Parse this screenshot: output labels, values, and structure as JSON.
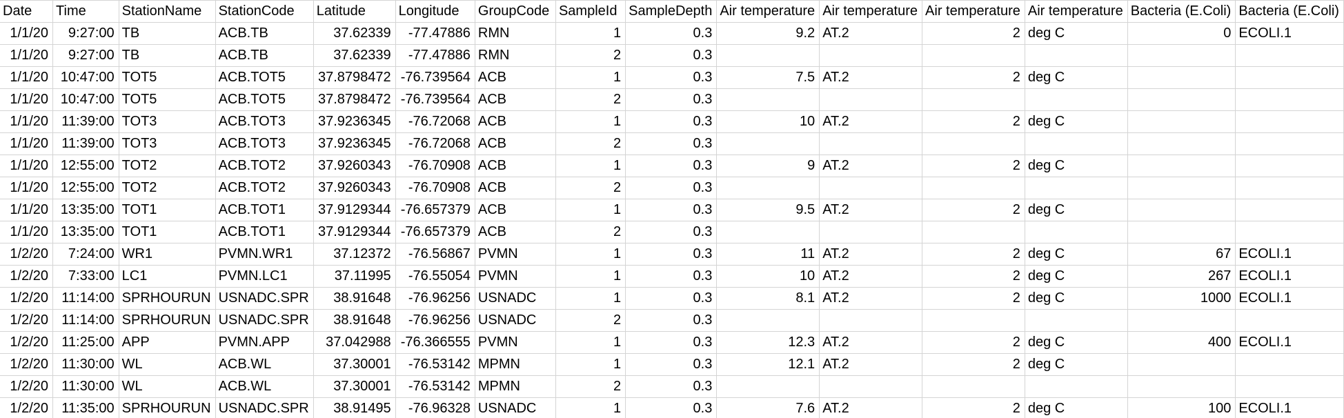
{
  "sheet": {
    "headers": [
      "Date",
      "Time",
      "StationName",
      "StationCode",
      "Latitude",
      "Longitude",
      "GroupCode",
      "SampleId",
      "SampleDepth",
      "Air temperature",
      "Air temperature",
      "Air temperature",
      "Air temperature",
      "Bacteria (E.Coli)",
      "Bacteria (E.Coli)"
    ],
    "rows": [
      [
        "1/1/20",
        "9:27:00",
        "TB",
        "ACB.TB",
        "37.62339",
        "-77.47886",
        "RMN",
        "1",
        "0.3",
        "9.2",
        "AT.2",
        "2",
        "deg C",
        "0",
        "ECOLI.1"
      ],
      [
        "1/1/20",
        "9:27:00",
        "TB",
        "ACB.TB",
        "37.62339",
        "-77.47886",
        "RMN",
        "2",
        "0.3",
        "",
        "",
        "",
        "",
        "",
        ""
      ],
      [
        "1/1/20",
        "10:47:00",
        "TOT5",
        "ACB.TOT5",
        "37.8798472",
        "-76.739564",
        "ACB",
        "1",
        "0.3",
        "7.5",
        "AT.2",
        "2",
        "deg C",
        "",
        ""
      ],
      [
        "1/1/20",
        "10:47:00",
        "TOT5",
        "ACB.TOT5",
        "37.8798472",
        "-76.739564",
        "ACB",
        "2",
        "0.3",
        "",
        "",
        "",
        "",
        "",
        ""
      ],
      [
        "1/1/20",
        "11:39:00",
        "TOT3",
        "ACB.TOT3",
        "37.9236345",
        "-76.72068",
        "ACB",
        "1",
        "0.3",
        "10",
        "AT.2",
        "2",
        "deg C",
        "",
        ""
      ],
      [
        "1/1/20",
        "11:39:00",
        "TOT3",
        "ACB.TOT3",
        "37.9236345",
        "-76.72068",
        "ACB",
        "2",
        "0.3",
        "",
        "",
        "",
        "",
        "",
        ""
      ],
      [
        "1/1/20",
        "12:55:00",
        "TOT2",
        "ACB.TOT2",
        "37.9260343",
        "-76.70908",
        "ACB",
        "1",
        "0.3",
        "9",
        "AT.2",
        "2",
        "deg C",
        "",
        ""
      ],
      [
        "1/1/20",
        "12:55:00",
        "TOT2",
        "ACB.TOT2",
        "37.9260343",
        "-76.70908",
        "ACB",
        "2",
        "0.3",
        "",
        "",
        "",
        "",
        "",
        ""
      ],
      [
        "1/1/20",
        "13:35:00",
        "TOT1",
        "ACB.TOT1",
        "37.9129344",
        "-76.657379",
        "ACB",
        "1",
        "0.3",
        "9.5",
        "AT.2",
        "2",
        "deg C",
        "",
        ""
      ],
      [
        "1/1/20",
        "13:35:00",
        "TOT1",
        "ACB.TOT1",
        "37.9129344",
        "-76.657379",
        "ACB",
        "2",
        "0.3",
        "",
        "",
        "",
        "",
        "",
        ""
      ],
      [
        "1/2/20",
        "7:24:00",
        "WR1",
        "PVMN.WR1",
        "37.12372",
        "-76.56867",
        "PVMN",
        "1",
        "0.3",
        "11",
        "AT.2",
        "2",
        "deg C",
        "67",
        "ECOLI.1"
      ],
      [
        "1/2/20",
        "7:33:00",
        "LC1",
        "PVMN.LC1",
        "37.11995",
        "-76.55054",
        "PVMN",
        "1",
        "0.3",
        "10",
        "AT.2",
        "2",
        "deg C",
        "267",
        "ECOLI.1"
      ],
      [
        "1/2/20",
        "11:14:00",
        "SPRHOURUN",
        "USNADC.SPR",
        "38.91648",
        "-76.96256",
        "USNADC",
        "1",
        "0.3",
        "8.1",
        "AT.2",
        "2",
        "deg C",
        "1000",
        "ECOLI.1"
      ],
      [
        "1/2/20",
        "11:14:00",
        "SPRHOURUN",
        "USNADC.SPR",
        "38.91648",
        "-76.96256",
        "USNADC",
        "2",
        "0.3",
        "",
        "",
        "",
        "",
        "",
        ""
      ],
      [
        "1/2/20",
        "11:25:00",
        "APP",
        "PVMN.APP",
        "37.042988",
        "-76.366555",
        "PVMN",
        "1",
        "0.3",
        "12.3",
        "AT.2",
        "2",
        "deg C",
        "400",
        "ECOLI.1"
      ],
      [
        "1/2/20",
        "11:30:00",
        "WL",
        "ACB.WL",
        "37.30001",
        "-76.53142",
        "MPMN",
        "1",
        "0.3",
        "12.1",
        "AT.2",
        "2",
        "deg C",
        "",
        ""
      ],
      [
        "1/2/20",
        "11:30:00",
        "WL",
        "ACB.WL",
        "37.30001",
        "-76.53142",
        "MPMN",
        "2",
        "0.3",
        "",
        "",
        "",
        "",
        "",
        ""
      ],
      [
        "1/2/20",
        "11:35:00",
        "SPRHOURUN",
        "USNADC.SPR",
        "38.91495",
        "-76.96328",
        "USNADC",
        "1",
        "0.3",
        "7.6",
        "AT.2",
        "2",
        "deg C",
        "100",
        "ECOLI.1"
      ]
    ]
  }
}
